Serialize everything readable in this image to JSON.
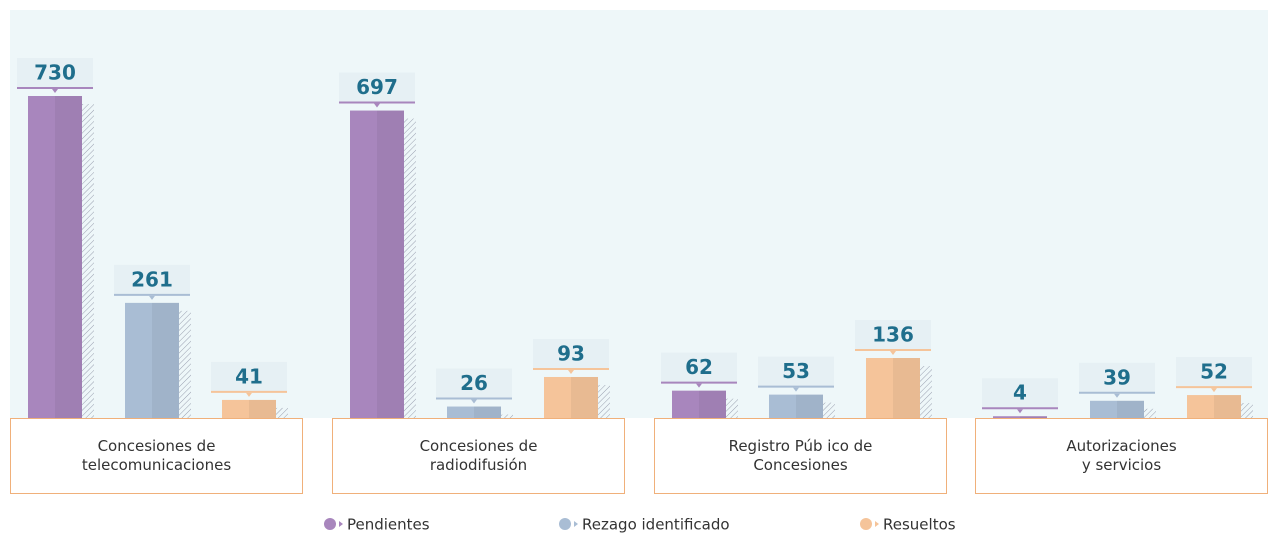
{
  "chart_data": {
    "type": "bar",
    "categories": [
      "Concesiones de\ntelecomunicaciones",
      "Concesiones de\nradiodifusión",
      "Registro Púb ico de\nConcesiones",
      "Autorizaciones\ny servicios"
    ],
    "series": [
      {
        "name": "Pendientes",
        "color": "#a886bd",
        "values": [
          730,
          697,
          62,
          4
        ]
      },
      {
        "name": "Rezago identificado",
        "color": "#a9bdd4",
        "values": [
          261,
          26,
          53,
          39
        ]
      },
      {
        "name": "Resueltos",
        "color": "#f5c49a",
        "values": [
          41,
          93,
          136,
          52
        ]
      }
    ]
  }
}
